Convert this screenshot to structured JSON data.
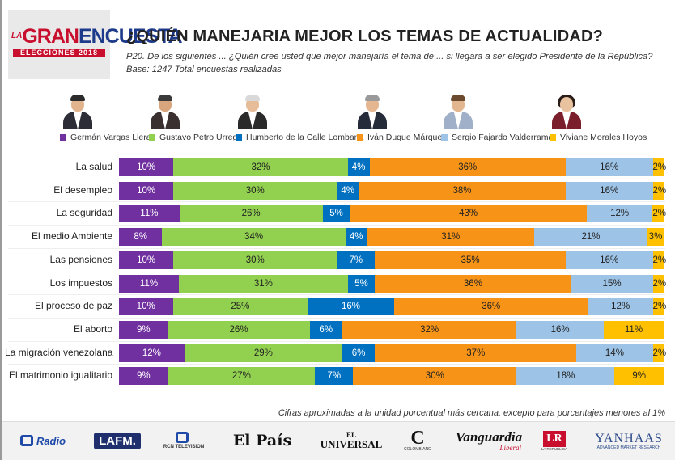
{
  "logo": {
    "la": "LA",
    "gran": "GRAN",
    "encuesta": "ENCUESTA",
    "band": "ELECCIONES 2018"
  },
  "header": {
    "title": "¿QUIÉN MANEJARIA MEJOR LOS TEMAS DE ACTUALIDAD?",
    "question": "P20. De los siguientes ... ¿Quién cree usted que mejor manejaría el tema de ...  si llegara a ser elegido Presidente de la República?",
    "base": "Base: 1247 Total encuestas realizadas"
  },
  "colors": {
    "vargas": "#7030a0",
    "petro": "#92d050",
    "delacalle": "#0070c0",
    "duque": "#f79418",
    "fajardo": "#9dc3e6",
    "morales": "#ffc000"
  },
  "chart_data": {
    "type": "bar",
    "orientation": "horizontal",
    "stacked": true,
    "percent": true,
    "categories": [
      "La salud",
      "El desempleo",
      "La seguridad",
      "El medio Ambiente",
      "Las pensiones",
      "Los impuestos",
      "El proceso de paz",
      "El aborto",
      "La migración venezolana",
      "El matrimonio igualitario"
    ],
    "series": [
      {
        "name": "Germán Vargas Lleras",
        "color": "#7030a0",
        "values": [
          10,
          10,
          11,
          8,
          10,
          11,
          10,
          9,
          12,
          9
        ]
      },
      {
        "name": "Gustavo Petro Urrego",
        "color": "#92d050",
        "values": [
          32,
          30,
          26,
          34,
          30,
          31,
          25,
          26,
          29,
          27
        ]
      },
      {
        "name": "Humberto de la Calle Lombana",
        "color": "#0070c0",
        "values": [
          4,
          4,
          5,
          4,
          7,
          5,
          16,
          6,
          6,
          7
        ]
      },
      {
        "name": "Iván Duque Márquez",
        "color": "#f79418",
        "values": [
          36,
          38,
          43,
          31,
          35,
          36,
          36,
          32,
          37,
          30
        ]
      },
      {
        "name": "Sergio Fajardo Valderrama",
        "color": "#9dc3e6",
        "values": [
          16,
          16,
          12,
          21,
          16,
          15,
          12,
          16,
          14,
          18
        ]
      },
      {
        "name": "Viviane Morales Hoyos",
        "color": "#ffc000",
        "values": [
          2,
          2,
          2,
          3,
          2,
          2,
          2,
          11,
          2,
          9
        ]
      }
    ],
    "value_suffix": "%",
    "title": "¿QUIÉN MANEJARIA MEJOR LOS TEMAS DE ACTUALIDAD?",
    "legend_position": "top"
  },
  "footnote": "Cifras aproximadas a la unidad porcentual más cercana, excepto para porcentajes menores al 1%",
  "partners": [
    {
      "name": "rcn-radio",
      "text": "Radio",
      "icon": "rcn-icon"
    },
    {
      "name": "la-fm",
      "text": "LAFM."
    },
    {
      "name": "rcn-television",
      "text": "RCN TELEVISION",
      "icon": "rcn-icon"
    },
    {
      "name": "el-pais",
      "text": "El País"
    },
    {
      "name": "el-universal",
      "text_top": "EL",
      "text_bottom": "UNIVERSAL"
    },
    {
      "name": "colombiano",
      "text": "C",
      "sub": "COLOMBIANO"
    },
    {
      "name": "vanguardia-liberal",
      "text": "Vanguardia",
      "sub": "Liberal"
    },
    {
      "name": "la-republica",
      "text": "LR",
      "sub": "LA REPUBLICA"
    },
    {
      "name": "yanhaas",
      "text": "YANHAAS",
      "sub": "ADVANCED MARKET RESEARCH"
    }
  ]
}
